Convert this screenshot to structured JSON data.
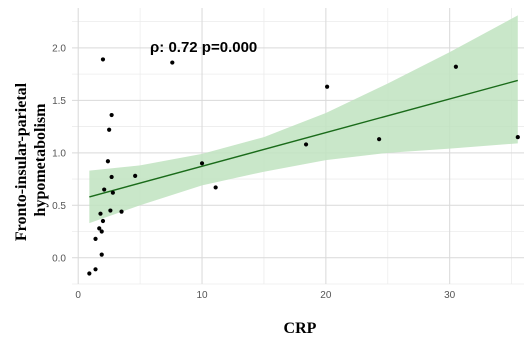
{
  "chart_data": {
    "type": "scatter",
    "title": "",
    "annotation": "ρ: 0.72 p=0.000",
    "xlabel": "CRP",
    "ylabel_lines": [
      "Fronto-insular-parietal",
      "hypometabolism"
    ],
    "xlim": [
      -0.5,
      36
    ],
    "ylim": [
      -0.25,
      2.38
    ],
    "x_ticks": [
      0,
      10,
      20,
      30
    ],
    "y_ticks": [
      0.0,
      0.5,
      1.0,
      1.5,
      2.0
    ],
    "y_tick_labels": [
      "0.0",
      "0.5",
      "1.0",
      "1.5",
      "2.0"
    ],
    "grid": true,
    "points": [
      {
        "x": 0.9,
        "y": -0.15
      },
      {
        "x": 1.4,
        "y": -0.11
      },
      {
        "x": 1.4,
        "y": 0.18
      },
      {
        "x": 1.7,
        "y": 0.28
      },
      {
        "x": 1.8,
        "y": 0.42
      },
      {
        "x": 1.9,
        "y": 0.03
      },
      {
        "x": 1.9,
        "y": 0.25
      },
      {
        "x": 2.0,
        "y": 0.35
      },
      {
        "x": 2.0,
        "y": 1.89
      },
      {
        "x": 2.1,
        "y": 0.65
      },
      {
        "x": 2.4,
        "y": 0.92
      },
      {
        "x": 2.5,
        "y": 1.22
      },
      {
        "x": 2.6,
        "y": 0.45
      },
      {
        "x": 2.7,
        "y": 0.77
      },
      {
        "x": 2.7,
        "y": 1.36
      },
      {
        "x": 2.8,
        "y": 0.62
      },
      {
        "x": 3.5,
        "y": 0.44
      },
      {
        "x": 4.6,
        "y": 0.78
      },
      {
        "x": 7.6,
        "y": 1.86
      },
      {
        "x": 10.0,
        "y": 0.9
      },
      {
        "x": 11.1,
        "y": 0.67
      },
      {
        "x": 18.4,
        "y": 1.08
      },
      {
        "x": 20.1,
        "y": 1.63
      },
      {
        "x": 24.3,
        "y": 1.13
      },
      {
        "x": 30.5,
        "y": 1.82
      },
      {
        "x": 35.5,
        "y": 1.15
      }
    ],
    "fit_line": {
      "x": [
        0.9,
        35.5
      ],
      "y": [
        0.58,
        1.69
      ],
      "color": "#1a6b1a"
    },
    "confidence_band": {
      "x": [
        0.9,
        5,
        10,
        15,
        20,
        25,
        30,
        35.5
      ],
      "upper": [
        0.83,
        0.88,
        0.99,
        1.15,
        1.38,
        1.66,
        1.96,
        2.31
      ],
      "lower": [
        0.33,
        0.5,
        0.69,
        0.82,
        0.93,
        1.0,
        1.04,
        1.09
      ],
      "color": "#bfe3bf"
    },
    "point_color": "#000000"
  }
}
